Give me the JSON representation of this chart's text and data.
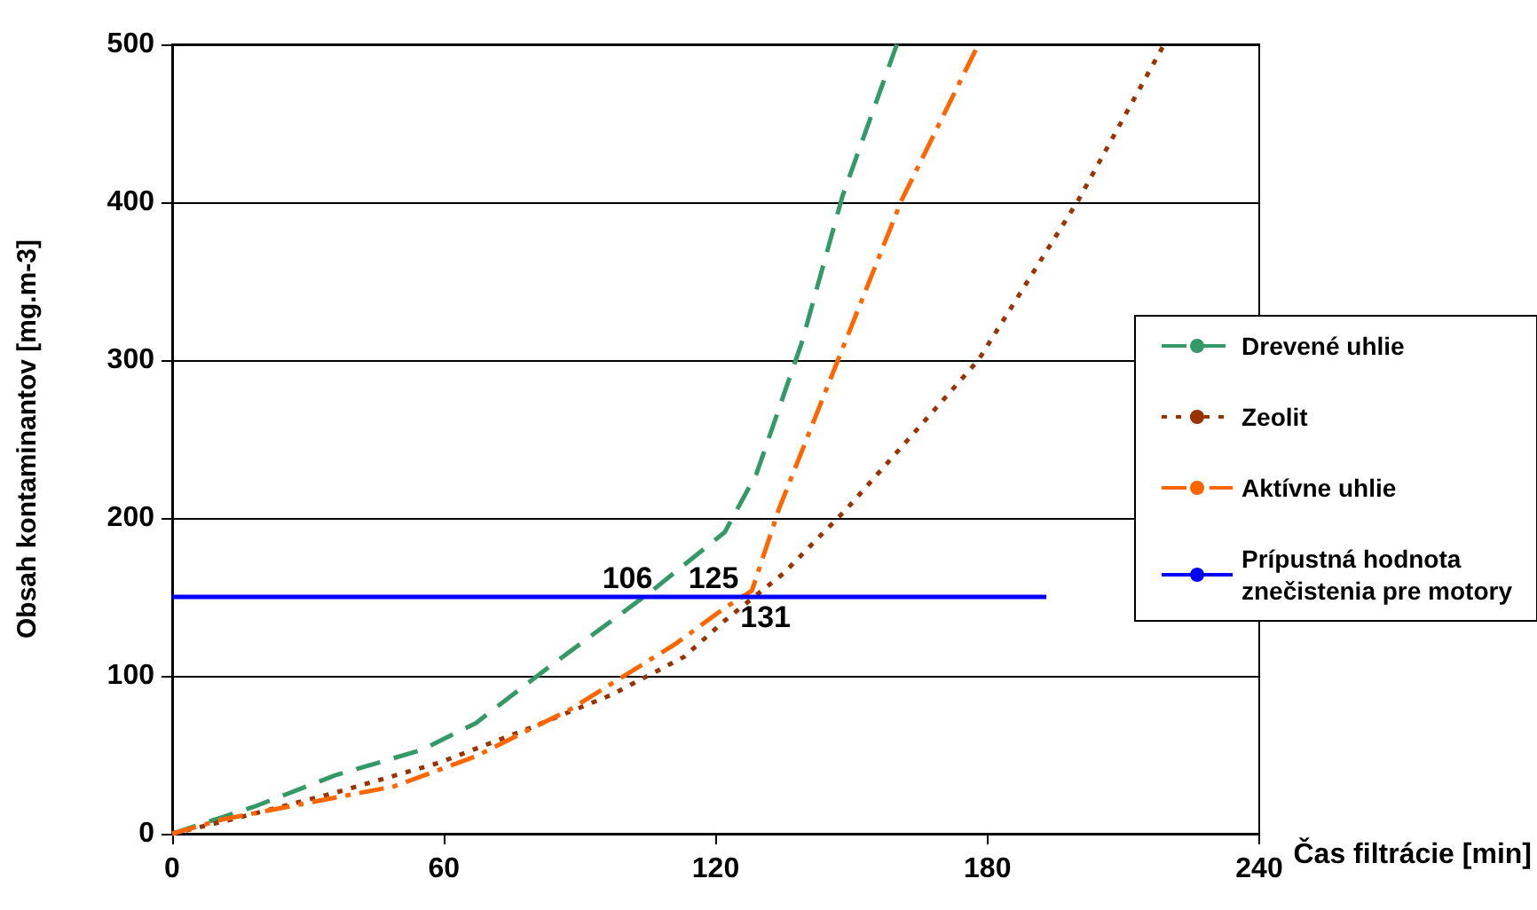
{
  "chart_data": {
    "type": "line",
    "xlabel": "Čas filtrácie [min]",
    "ylabel": "Obsah kontaminantov [mg.m-3]",
    "xlim": [
      0,
      240
    ],
    "xticks": [
      0,
      60,
      120,
      180,
      240
    ],
    "ylim": [
      0,
      500
    ],
    "yticks": [
      0,
      100,
      200,
      300,
      400,
      500
    ],
    "grid": "y",
    "legend": "right",
    "marker": "none",
    "series": [
      {
        "name": "Drevené uhlie",
        "color": "#339966",
        "line_style": "dashed",
        "x": [
          0,
          18,
          36,
          55,
          67,
          82,
          106,
          122,
          129,
          139,
          148,
          160
        ],
        "values": [
          0,
          17,
          37,
          53,
          70,
          103,
          154,
          191,
          228,
          311,
          404,
          500
        ]
      },
      {
        "name": "Zeolit",
        "color": "#993300",
        "line_style": "dotted",
        "x": [
          0,
          13,
          36,
          59,
          79,
          97,
          107,
          113,
          122,
          135,
          149,
          178,
          200,
          219
        ],
        "values": [
          0,
          9,
          26,
          45,
          67,
          88,
          103,
          112,
          135,
          165,
          206,
          300,
          401,
          500
        ]
      },
      {
        "name": "Aktívne uhlie",
        "color": "#ff6600",
        "line_style": "dashdot",
        "x": [
          0,
          11,
          29,
          49,
          67,
          88,
          111,
          122,
          128,
          134,
          147,
          161,
          178
        ],
        "values": [
          0,
          9,
          19,
          30,
          49,
          79,
          120,
          143,
          154,
          206,
          300,
          401,
          500
        ]
      },
      {
        "name": "Prípustná hodnota\nznečistenia pre motory",
        "color": "#0000ff",
        "line_style": "solid",
        "x": [
          0,
          193
        ],
        "values": [
          150,
          150
        ]
      }
    ],
    "annotations": [
      {
        "text": "106",
        "x": 106,
        "y": 150
      },
      {
        "text": "125",
        "x": 125,
        "y": 150
      },
      {
        "text": "131",
        "x": 131,
        "y": 150
      }
    ]
  }
}
